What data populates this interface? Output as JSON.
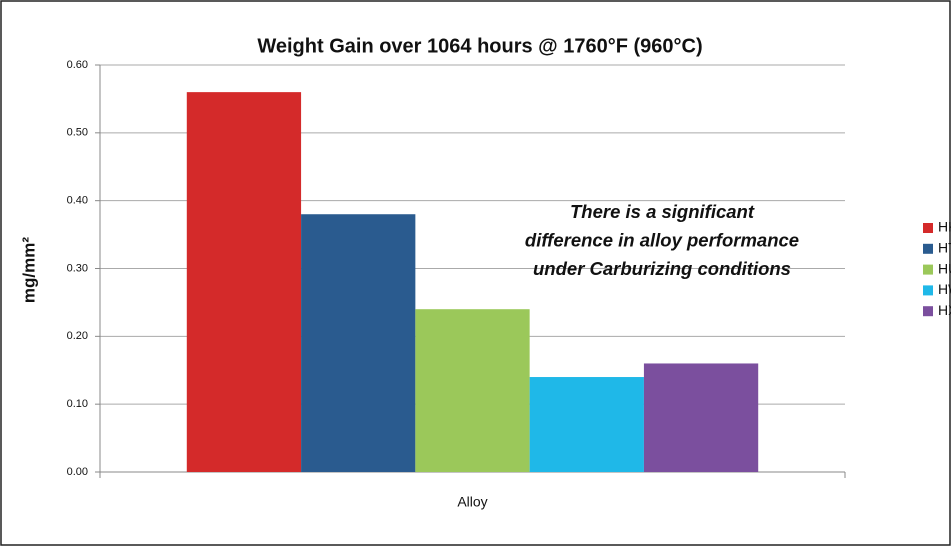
{
  "chart_data": {
    "type": "bar",
    "title": "Weight Gain over 1064 hours @ 1760°F (960°C)",
    "y_label": "mg/mm²",
    "categories": [
      "Alloy"
    ],
    "series": [
      {
        "name": "HK",
        "color": "#d42a2a",
        "values": [
          0.56
        ]
      },
      {
        "name": "HT",
        "color": "#2a5b8f",
        "values": [
          0.38
        ]
      },
      {
        "name": "HU",
        "color": "#9bc85a",
        "values": [
          0.24
        ]
      },
      {
        "name": "HW",
        "color": "#1fb8e8",
        "values": [
          0.14
        ]
      },
      {
        "name": "HX",
        "color": "#7b4f9e",
        "values": [
          0.16
        ]
      }
    ],
    "ylim": [
      0,
      0.6
    ],
    "yticks": [
      {
        "value": 0,
        "label": "0.00"
      },
      {
        "value": 0.1,
        "label": "0.10"
      },
      {
        "value": 0.2,
        "label": "0.20"
      },
      {
        "value": 0.3,
        "label": "0.30"
      },
      {
        "value": 0.4,
        "label": "0.40"
      },
      {
        "value": 0.5,
        "label": "0.50"
      },
      {
        "value": 0.6,
        "label": "0.60"
      }
    ],
    "grid": true,
    "legend": "right",
    "annotation": [
      "There is a significant",
      "difference in alloy performance",
      "under Carburizing conditions"
    ]
  }
}
